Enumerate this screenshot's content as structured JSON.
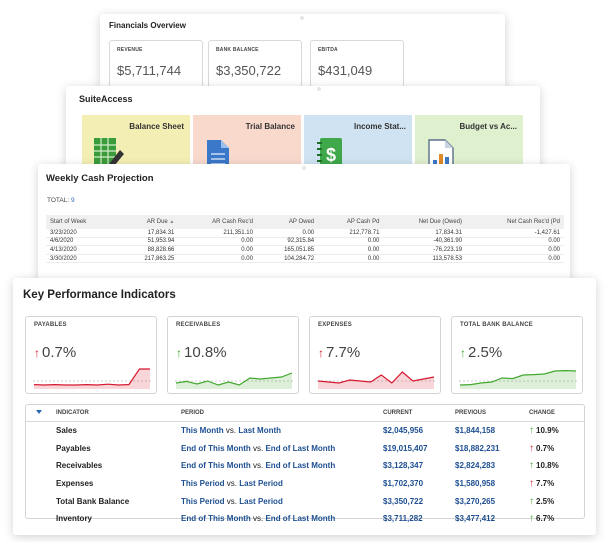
{
  "financials": {
    "title": "Financials Overview",
    "boxes": [
      {
        "label": "REVENUE",
        "value": "$5,711,744"
      },
      {
        "label": "BANK BALANCE",
        "value": "$3,350,722"
      },
      {
        "label": "EBITDA",
        "value": "$431,049"
      }
    ]
  },
  "suite_access": {
    "title": "SuiteAccess",
    "tiles": [
      {
        "label": "Balance Sheet",
        "icon": "balance-sheet-icon",
        "color": "#f3efb4"
      },
      {
        "label": "Trial Balance",
        "icon": "document-icon",
        "color": "#f9d9cc"
      },
      {
        "label": "Income Stat...",
        "icon": "dollar-notebook-icon",
        "color": "#cfe3f2"
      },
      {
        "label": "Budget vs Ac...",
        "icon": "report-chart-icon",
        "color": "#dff0cf"
      }
    ]
  },
  "weekly_cash": {
    "title": "Weekly Cash Projection",
    "total_label": "TOTAL:",
    "total_value": "9",
    "columns": [
      "Start of Week",
      "AR Due",
      "AR Cash Rec'd",
      "AP Owed",
      "AP Cash Pd",
      "Net Due (Owed)",
      "Net Cash Rec'd (Pd"
    ],
    "sort_indicator": "▲",
    "rows": [
      [
        "3/23/2020",
        "17,834.31",
        "211,351.10",
        "0.00",
        "212,778.71",
        "17,834.31",
        "-1,427.61"
      ],
      [
        "4/6/2020",
        "51,953.94",
        "0.00",
        "92,315.84",
        "0.00",
        "-40,361.90",
        "0.00"
      ],
      [
        "4/13/2020",
        "88,828.66",
        "0.00",
        "165,051.85",
        "0.00",
        "-76,223.19",
        "0.00"
      ],
      [
        "3/30/2020",
        "217,863.25",
        "0.00",
        "104,284.72",
        "0.00",
        "113,578.53",
        "0.00"
      ]
    ]
  },
  "kpi": {
    "title": "Key Performance Indicators",
    "cards": [
      {
        "label": "PAYABLES",
        "value": "0.7%",
        "direction": "up",
        "color": "#d6182e",
        "spark": [
          0.12,
          0.1,
          0.12,
          0.1,
          0.1,
          0.12,
          0.1,
          0.14,
          0.1,
          0.12,
          0.9,
          0.9
        ]
      },
      {
        "label": "RECEIVABLES",
        "value": "10.8%",
        "direction": "up",
        "color": "#42a82e",
        "spark": [
          0.2,
          0.28,
          0.15,
          0.3,
          0.1,
          0.25,
          0.1,
          0.45,
          0.4,
          0.45,
          0.5,
          0.7
        ]
      },
      {
        "label": "EXPENSES",
        "value": "7.7%",
        "direction": "up",
        "color": "#d6182e",
        "spark": [
          0.3,
          0.25,
          0.2,
          0.35,
          0.3,
          0.25,
          0.6,
          0.2,
          0.75,
          0.3,
          0.4,
          0.5
        ]
      },
      {
        "label": "TOTAL BANK BALANCE",
        "value": "2.5%",
        "direction": "up",
        "color": "#42a82e",
        "spark": [
          0.1,
          0.12,
          0.2,
          0.25,
          0.45,
          0.42,
          0.6,
          0.62,
          0.65,
          0.8,
          0.82,
          0.8
        ]
      }
    ],
    "table": {
      "headers": [
        "INDICATOR",
        "PERIOD",
        "CURRENT",
        "PREVIOUS",
        "CHANGE"
      ],
      "vs": "vs.",
      "rows": [
        {
          "indicator": "Sales",
          "p1": "This Month",
          "p2": "Last Month",
          "current": "$2,045,956",
          "previous": "$1,844,158",
          "change": "10.9%",
          "color": "#42a82e"
        },
        {
          "indicator": "Payables",
          "p1": "End of This Month",
          "p2": "End of Last Month",
          "current": "$19,015,407",
          "previous": "$18,882,231",
          "change": "0.7%",
          "color": "#d6182e"
        },
        {
          "indicator": "Receivables",
          "p1": "End of This Month",
          "p2": "End of Last Month",
          "current": "$3,128,347",
          "previous": "$2,824,283",
          "change": "10.8%",
          "color": "#42a82e"
        },
        {
          "indicator": "Expenses",
          "p1": "This Period",
          "p2": "Last Period",
          "current": "$1,702,370",
          "previous": "$1,580,958",
          "change": "7.7%",
          "color": "#d6182e"
        },
        {
          "indicator": "Total Bank Balance",
          "p1": "This Period",
          "p2": "Last Period",
          "current": "$3,350,722",
          "previous": "$3,270,265",
          "change": "2.5%",
          "color": "#42a82e"
        },
        {
          "indicator": "Inventory",
          "p1": "End of This Month",
          "p2": "End of Last Month",
          "current": "$3,711,282",
          "previous": "$3,477,412",
          "change": "6.7%",
          "color": "#42a82e"
        }
      ]
    }
  }
}
